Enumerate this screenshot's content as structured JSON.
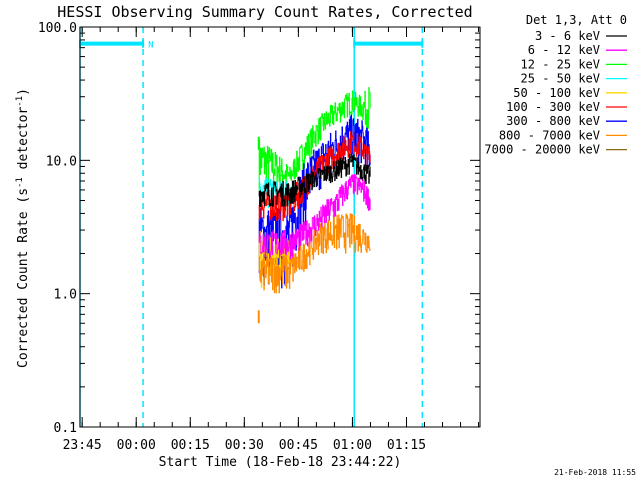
{
  "chart_data": {
    "type": "line",
    "title": "HESSI Observing Summary Count Rates, Corrected",
    "xlabel": "Start Time (18-Feb-18 23:44:22)",
    "ylabel_main": "Corrected Count Rate (s",
    "ylabel_sup1": "-1",
    "ylabel_mid": " detector",
    "ylabel_sup2": "-1",
    "ylabel_end": ")",
    "y_scale": "log",
    "ylim": [
      0.1,
      100
    ],
    "y_ticks": [
      {
        "value": 0.1,
        "label": "0.1"
      },
      {
        "value": 1,
        "label": "1.0"
      },
      {
        "value": 10,
        "label": "10.0"
      },
      {
        "value": 100,
        "label": "100.0"
      }
    ],
    "x_unit": "minutes after 23:44:22",
    "xlim": [
      0,
      111
    ],
    "x_ticks": [
      {
        "value": 0.6,
        "label": "23:45"
      },
      {
        "value": 15.6,
        "label": "00:00"
      },
      {
        "value": 30.6,
        "label": "00:15"
      },
      {
        "value": 45.6,
        "label": "00:30"
      },
      {
        "value": 60.6,
        "label": "00:45"
      },
      {
        "value": 75.6,
        "label": "01:00"
      },
      {
        "value": 90.6,
        "label": "01:15"
      }
    ],
    "legend_header": "Det 1,3, Att 0",
    "legend_placement": "top-right, outside plot",
    "series": [
      {
        "name": "3 - 6 keV",
        "color": "#000000",
        "rows": [
          [
            49.6,
            4.5,
            7.0
          ],
          [
            58.2,
            4.5,
            7.0
          ],
          [
            62.5,
            5.5,
            8.0
          ],
          [
            66.8,
            6.5,
            9.0
          ],
          [
            71.1,
            7.0,
            10.0
          ],
          [
            75.4,
            8.0,
            11.5
          ],
          [
            78.2,
            7.0,
            10.0
          ],
          [
            80.5,
            6.0,
            9.0
          ]
        ]
      },
      {
        "name": "6 - 12 keV",
        "color": "#ff00ff",
        "rows": [
          [
            49.6,
            1.8,
            3.0
          ],
          [
            58.2,
            1.8,
            3.0
          ],
          [
            62.5,
            2.2,
            3.5
          ],
          [
            66.8,
            2.8,
            4.5
          ],
          [
            71.1,
            3.5,
            6.0
          ],
          [
            75.4,
            5.5,
            8.0
          ],
          [
            78.2,
            5.0,
            7.5
          ],
          [
            80.5,
            4.0,
            6.0
          ]
        ]
      },
      {
        "name": "12 - 25 keV",
        "color": "#00ff00",
        "rows": [
          [
            49.6,
            6.0,
            15.0
          ],
          [
            58.2,
            6.0,
            9.0
          ],
          [
            62.5,
            9.0,
            15.0
          ],
          [
            66.8,
            14.0,
            22.0
          ],
          [
            71.1,
            18.0,
            28.0
          ],
          [
            75.4,
            22.0,
            34.0
          ],
          [
            78.2,
            20.0,
            30.0
          ],
          [
            80.5,
            14.0,
            38.0
          ]
        ]
      },
      {
        "name": "25 - 50 keV",
        "color": "#00ffff",
        "rows": [
          [
            49.6,
            4.0,
            7.5
          ],
          [
            58.2,
            4.5,
            7.0
          ]
        ]
      },
      {
        "name": "50 - 100 keV",
        "color": "#ffd700",
        "rows": [
          [
            49.6,
            1.0,
            3.0
          ],
          [
            58.2,
            1.5,
            2.5
          ]
        ]
      },
      {
        "name": "100 - 300 keV",
        "color": "#ff0000",
        "rows": [
          [
            49.6,
            3.5,
            6.0
          ],
          [
            58.2,
            3.5,
            6.0
          ],
          [
            62.5,
            5.0,
            8.0
          ],
          [
            66.8,
            7.0,
            11.0
          ],
          [
            71.1,
            9.0,
            14.0
          ],
          [
            75.4,
            11.0,
            17.0
          ],
          [
            78.2,
            10.0,
            15.0
          ],
          [
            80.5,
            8.0,
            12.0
          ]
        ]
      },
      {
        "name": "300 - 800 keV",
        "color": "#0000ff",
        "rows": [
          [
            49.6,
            1.0,
            4.5
          ],
          [
            58.2,
            1.0,
            4.5
          ],
          [
            62.5,
            3.0,
            10.0
          ],
          [
            66.8,
            6.0,
            14.0
          ],
          [
            71.1,
            8.0,
            18.0
          ],
          [
            75.4,
            10.0,
            22.0
          ],
          [
            78.2,
            9.0,
            20.0
          ],
          [
            80.5,
            7.0,
            16.0
          ]
        ]
      },
      {
        "name": "800 - 7000 keV",
        "color": "#ff8c00",
        "rows": [
          [
            49.6,
            1.0,
            2.0
          ],
          [
            58.2,
            1.0,
            2.0
          ],
          [
            62.5,
            1.5,
            2.5
          ],
          [
            66.8,
            2.0,
            3.5
          ],
          [
            71.1,
            2.0,
            4.0
          ],
          [
            75.4,
            2.0,
            4.0
          ],
          [
            78.2,
            2.0,
            3.5
          ],
          [
            80.5,
            2.0,
            3.0
          ]
        ]
      },
      {
        "name": "7000 - 20000 keV",
        "color": "#8b6914",
        "rows": []
      }
    ],
    "isolated_points": [
      {
        "color": "#00ff00",
        "x": 49.6,
        "y0": 12,
        "y1": 15
      },
      {
        "color": "#ff8c00",
        "x": 49.6,
        "y0": 0.6,
        "y1": 0.75
      }
    ],
    "markers": {
      "color": "#00e5ff",
      "solid_lines": [
        0.0,
        76.1
      ],
      "dashed_lines": [
        17.5,
        95.0
      ],
      "bars": [
        [
          0.0,
          17.5
        ],
        [
          76.1,
          95.0
        ]
      ],
      "bar_value": 75,
      "bar_label": "N"
    },
    "footer_date": "21-Feb-2018 11:55"
  }
}
